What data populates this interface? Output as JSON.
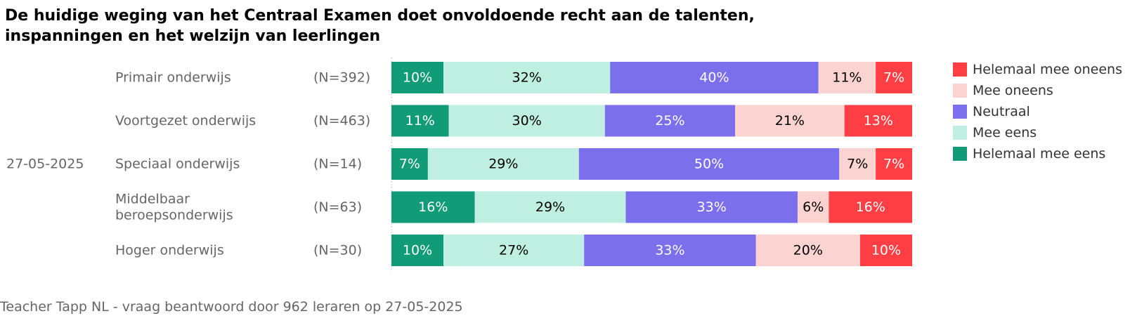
{
  "title_lines": [
    "De huidige weging van het Centraal Examen doet onvoldoende recht aan de talenten,",
    "inspanningen en het welzijn van leerlingen"
  ],
  "date_label": "27-05-2025",
  "footer": "Teacher Tapp NL - vraag beantwoord door 962 leraren op 27-05-2025",
  "chart_data": {
    "type": "bar",
    "orientation": "horizontal",
    "stacked": true,
    "normalized": true,
    "categories": [
      [
        "Primair onderwijs"
      ],
      [
        "Voortgezet onderwijs"
      ],
      [
        "Speciaal onderwijs"
      ],
      [
        "Middelbaar",
        "beroepsonderwijs"
      ],
      [
        "Hoger onderwijs"
      ]
    ],
    "n_labels": [
      "(N=392)",
      "(N=463)",
      "(N=14)",
      "(N=63)",
      "(N=30)"
    ],
    "xlim": [
      0,
      100
    ],
    "series": [
      {
        "name": "Helemaal mee eens",
        "color": "#119B76",
        "text_color": "#ffffff",
        "values": [
          10,
          11,
          7,
          16,
          10
        ],
        "labels": [
          "10%",
          "11%",
          "7%",
          "16%",
          "10%"
        ]
      },
      {
        "name": "Mee eens",
        "color": "#BEEFE0",
        "text_color": "#000000",
        "values": [
          32,
          30,
          29,
          29,
          27
        ],
        "labels": [
          "32%",
          "30%",
          "29%",
          "29%",
          "27%"
        ]
      },
      {
        "name": "Neutraal",
        "color": "#7B6FEB",
        "text_color": "#ffffff",
        "values": [
          40,
          25,
          50,
          33,
          33
        ],
        "labels": [
          "40%",
          "25%",
          "50%",
          "33%",
          "33%"
        ]
      },
      {
        "name": "Mee oneens",
        "color": "#FBD3D0",
        "text_color": "#000000",
        "values": [
          11,
          21,
          7,
          6,
          20
        ],
        "labels": [
          "11%",
          "21%",
          "7%",
          "6%",
          "20%"
        ]
      },
      {
        "name": "Helemaal mee oneens",
        "color": "#FF3F43",
        "text_color": "#ffffff",
        "values": [
          7,
          13,
          7,
          16,
          10
        ],
        "labels": [
          "7%",
          "13%",
          "7%",
          "16%",
          "10%"
        ]
      }
    ],
    "legend_order": [
      "Helemaal mee oneens",
      "Mee oneens",
      "Neutraal",
      "Mee eens",
      "Helemaal mee eens"
    ],
    "legend_position": "right",
    "grid": false
  }
}
